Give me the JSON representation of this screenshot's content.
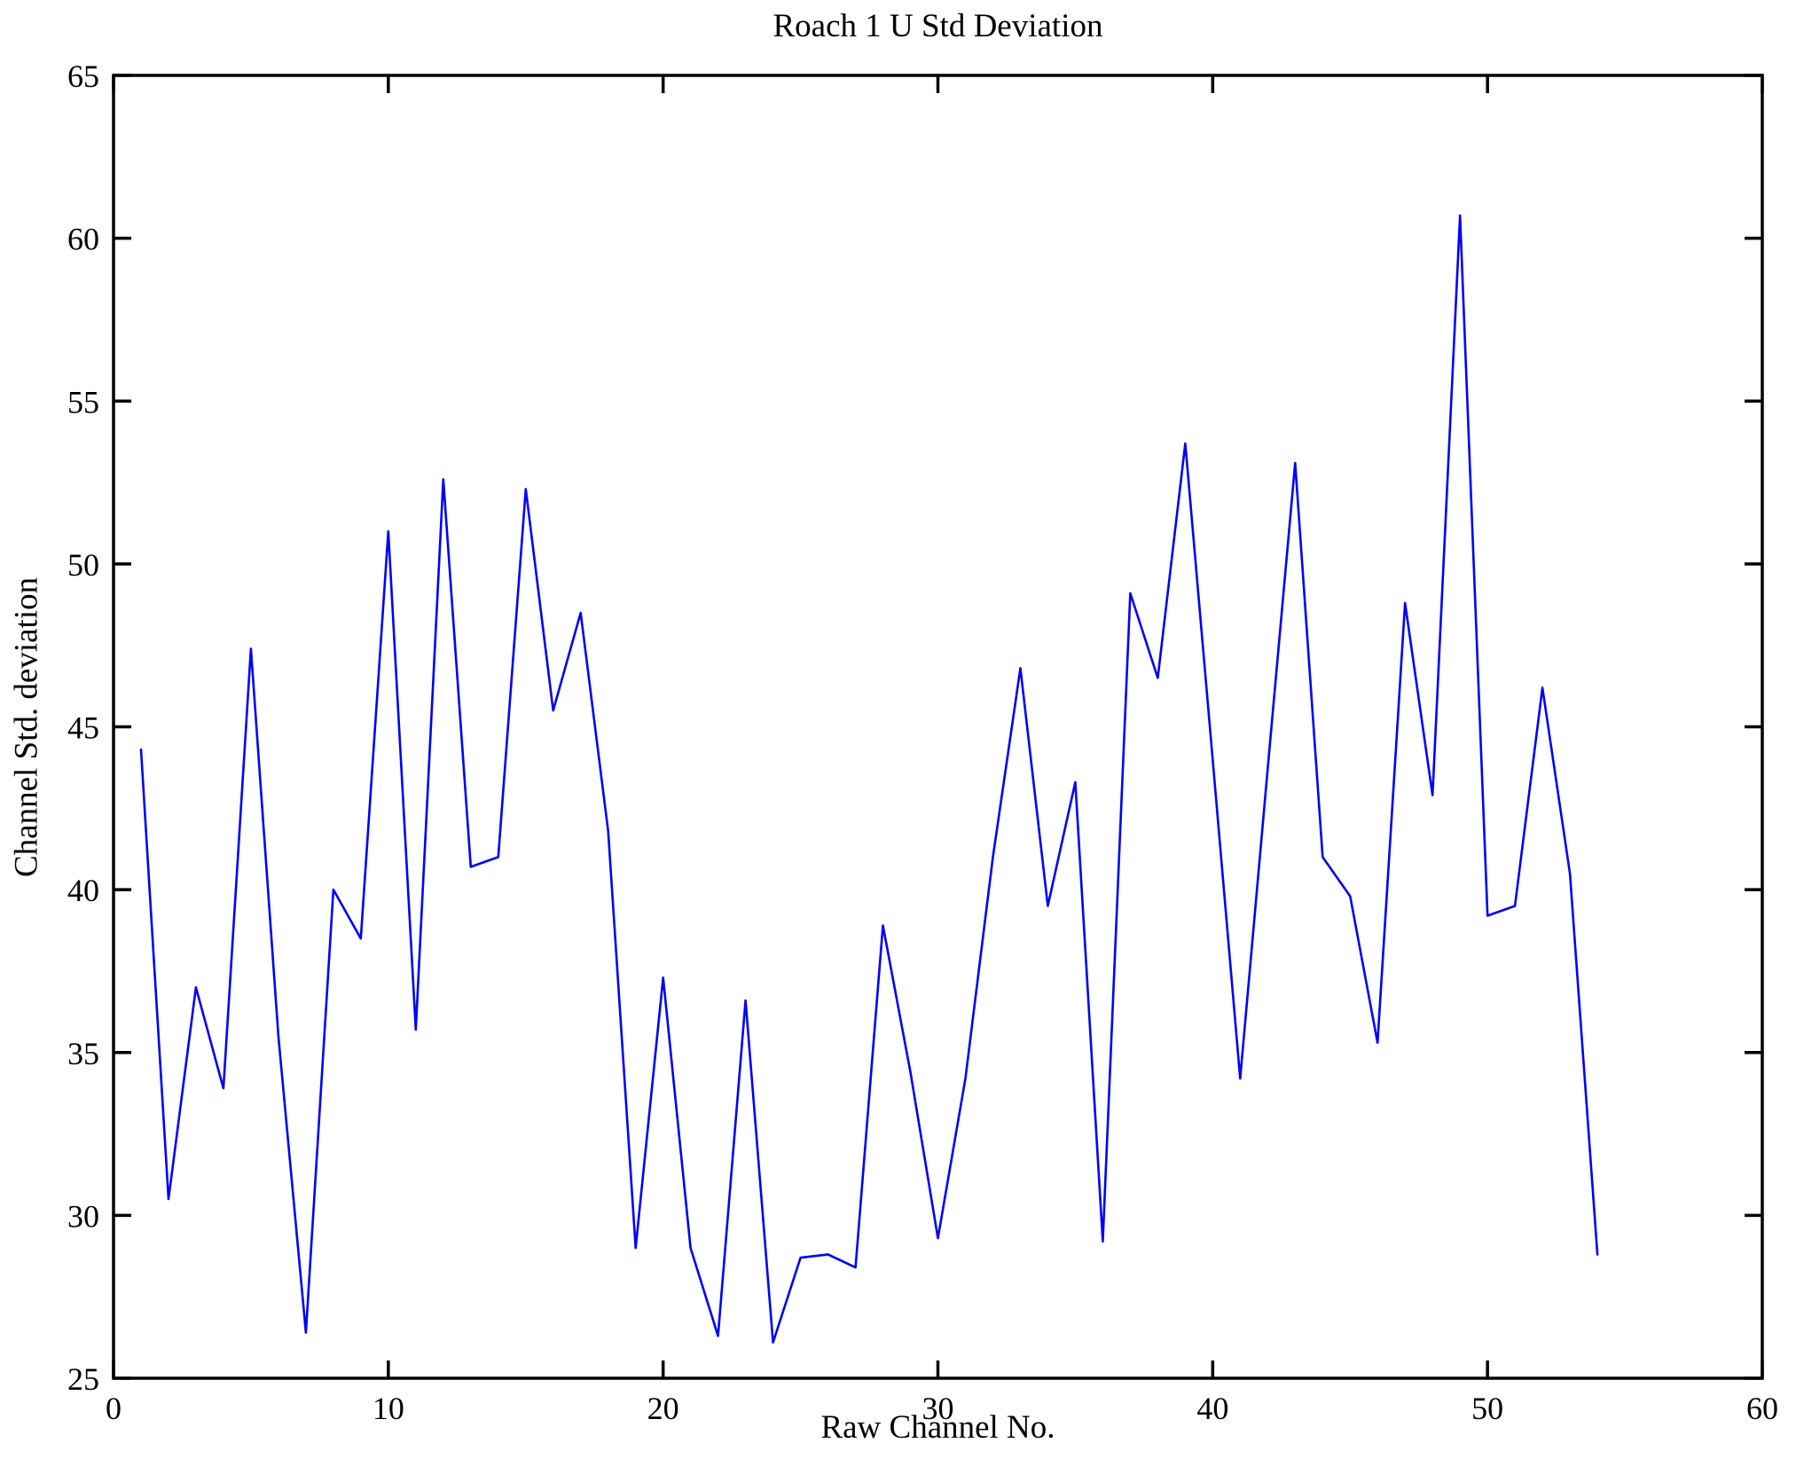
{
  "chart_data": {
    "type": "line",
    "title": "Roach 1 U Std Deviation",
    "xlabel": "Raw Channel No.",
    "ylabel": "Channel Std. deviation",
    "xlim": [
      0,
      60
    ],
    "ylim": [
      25,
      65
    ],
    "xticks": [
      0,
      10,
      20,
      30,
      40,
      50,
      60
    ],
    "yticks": [
      25,
      30,
      35,
      40,
      45,
      50,
      55,
      60,
      65
    ],
    "grid": false,
    "legend_position": "none",
    "line_color": "#0000ff",
    "axis_color": "#000000",
    "background_color": "#ffffff",
    "series_name": "Channel Std. deviation",
    "x": [
      1,
      2,
      3,
      4,
      5,
      6,
      7,
      8,
      9,
      10,
      11,
      12,
      13,
      14,
      15,
      16,
      17,
      18,
      19,
      20,
      21,
      22,
      23,
      24,
      25,
      26,
      27,
      28,
      29,
      30,
      31,
      32,
      33,
      34,
      35,
      36,
      37,
      38,
      39,
      40,
      41,
      42,
      43,
      44,
      45,
      46,
      47,
      48,
      49,
      50,
      51,
      52,
      53,
      54
    ],
    "y": [
      44.3,
      30.5,
      37.0,
      33.9,
      47.4,
      35.5,
      26.4,
      40.0,
      38.5,
      51.0,
      35.7,
      52.6,
      40.7,
      41.0,
      52.3,
      45.5,
      48.5,
      41.8,
      29.0,
      37.3,
      29.0,
      26.3,
      36.6,
      26.1,
      28.7,
      28.8,
      28.4,
      38.9,
      34.4,
      29.3,
      34.2,
      41.0,
      46.8,
      39.5,
      43.3,
      29.2,
      49.1,
      46.5,
      53.7,
      44.0,
      34.2,
      43.7,
      53.1,
      41.0,
      39.8,
      35.3,
      48.8,
      42.9,
      60.7,
      39.2,
      39.5,
      46.2,
      40.5,
      28.8
    ]
  }
}
